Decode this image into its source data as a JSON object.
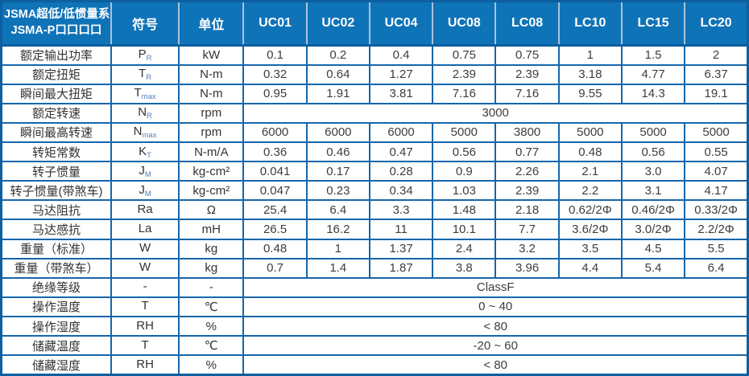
{
  "table": {
    "title_line1": "JSMA超低/低惯量系列",
    "title_line2": "JSMA-P口口口口",
    "col_headers": {
      "symbol": "符号",
      "unit": "单位"
    },
    "models": [
      "UC01",
      "UC02",
      "UC04",
      "UC08",
      "LC08",
      "LC10",
      "LC15",
      "LC20"
    ],
    "rows": [
      {
        "label": "额定输出功率",
        "symbol": {
          "main": "P",
          "sub": "R"
        },
        "unit": "kW",
        "values": [
          "0.1",
          "0.2",
          "0.4",
          "0.75",
          "0.75",
          "1",
          "1.5",
          "2"
        ]
      },
      {
        "label": "额定扭矩",
        "symbol": {
          "main": "T",
          "sub": "R"
        },
        "unit": "N-m",
        "values": [
          "0.32",
          "0.64",
          "1.27",
          "2.39",
          "2.39",
          "3.18",
          "4.77",
          "6.37"
        ]
      },
      {
        "label": "瞬间最大扭矩",
        "symbol": {
          "main": "T",
          "sub": "max"
        },
        "unit": "N-m",
        "values": [
          "0.95",
          "1.91",
          "3.81",
          "7.16",
          "7.16",
          "9.55",
          "14.3",
          "19.1"
        ]
      },
      {
        "label": "额定转速",
        "symbol": {
          "main": "N",
          "sub": "R"
        },
        "unit": "rpm",
        "merged": "3000"
      },
      {
        "label": "瞬间最高转速",
        "symbol": {
          "main": "N",
          "sub": "max"
        },
        "unit": "rpm",
        "values": [
          "6000",
          "6000",
          "6000",
          "5000",
          "3800",
          "5000",
          "5000",
          "5000"
        ]
      },
      {
        "label": "转矩常数",
        "symbol": {
          "main": "K",
          "sub": "T"
        },
        "unit": "N-m/A",
        "values": [
          "0.36",
          "0.46",
          "0.47",
          "0.56",
          "0.77",
          "0.48",
          "0.56",
          "0.55"
        ]
      },
      {
        "label": "转子惯量",
        "symbol": {
          "main": "J",
          "sub": "M"
        },
        "unit": "kg-cm²",
        "values": [
          "0.041",
          "0.17",
          "0.28",
          "0.9",
          "2.26",
          "2.1",
          "3.0",
          "4.07"
        ]
      },
      {
        "label": "转子惯量(带煞车)",
        "symbol": {
          "main": "J",
          "sub": "M"
        },
        "unit": "kg-cm²",
        "values": [
          "0.047",
          "0.23",
          "0.34",
          "1.03",
          "2.39",
          "2.2",
          "3.1",
          "4.17"
        ]
      },
      {
        "label": "马达阻抗",
        "symbol": {
          "main": "Ra",
          "sub": ""
        },
        "unit": "Ω",
        "values": [
          "25.4",
          "6.4",
          "3.3",
          "1.48",
          "2.18",
          "0.62/2Φ",
          "0.46/2Φ",
          "0.33/2Φ"
        ]
      },
      {
        "label": "马达感抗",
        "symbol": {
          "main": "La",
          "sub": ""
        },
        "unit": "mH",
        "values": [
          "26.5",
          "16.2",
          "11",
          "10.1",
          "7.7",
          "3.6/2Φ",
          "3.0/2Φ",
          "2.2/2Φ"
        ]
      },
      {
        "label": "重量（标准）",
        "symbol": {
          "main": "W",
          "sub": ""
        },
        "unit": "kg",
        "values": [
          "0.48",
          "1",
          "1.37",
          "2.4",
          "3.2",
          "3.5",
          "4.5",
          "5.5"
        ]
      },
      {
        "label": "重量（带煞车）",
        "symbol": {
          "main": "W",
          "sub": ""
        },
        "unit": "kg",
        "values": [
          "0.7",
          "1.4",
          "1.87",
          "3.8",
          "3.96",
          "4.4",
          "5.4",
          "6.4"
        ]
      },
      {
        "label": "绝缘等级",
        "symbol": {
          "main": "-",
          "sub": ""
        },
        "unit": "-",
        "merged": "ClassF"
      },
      {
        "label": "操作温度",
        "symbol": {
          "main": "T",
          "sub": ""
        },
        "unit": "℃",
        "merged": "0 ~ 40"
      },
      {
        "label": "操作湿度",
        "symbol": {
          "main": "RH",
          "sub": ""
        },
        "unit": "%",
        "merged": "< 80"
      },
      {
        "label": "储藏温度",
        "symbol": {
          "main": "T",
          "sub": ""
        },
        "unit": "℃",
        "merged": "-20 ~ 60"
      },
      {
        "label": "储藏湿度",
        "symbol": {
          "main": "RH",
          "sub": ""
        },
        "unit": "%",
        "merged": "< 80"
      }
    ],
    "colors": {
      "header_bg": "#0f73b8",
      "header_text": "#ffffff",
      "header_divider": "#a9c2de",
      "grid_line": "#1566ab",
      "outer_border": "#0d5f9f",
      "body_text": "#3d3d3d",
      "subscript": "#4f81bd"
    }
  }
}
